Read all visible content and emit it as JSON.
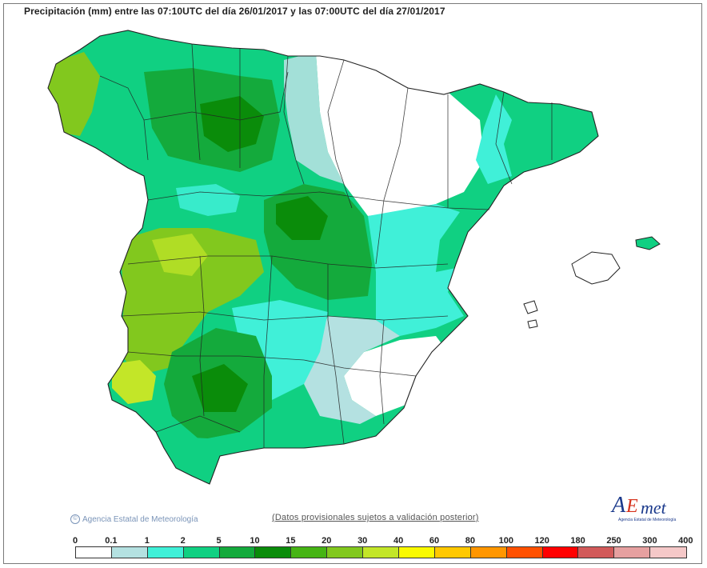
{
  "title": "Precipitación (mm) entre las 07:10UTC del día 26/01/2017 y las 07:00UTC del día 27/01/2017",
  "copyright": {
    "icon": "copyright-icon",
    "text": "Agencia Estatal de Meteorología"
  },
  "disclaimer": "(Datos provisionales sujetos a validación posterior)",
  "logo": {
    "letter_a": "A",
    "letter_e": "E",
    "letters_met": "met",
    "subtitle": "Agencia Estatal de Meteorología"
  },
  "legend": {
    "thresholds": [
      "0",
      "0.1",
      "1",
      "2",
      "5",
      "10",
      "15",
      "20",
      "30",
      "40",
      "60",
      "80",
      "100",
      "120",
      "180",
      "250",
      "300",
      "400"
    ],
    "colors": [
      "#ffffff",
      "#b4e1e1",
      "#40f0d8",
      "#10d082",
      "#14aa3c",
      "#0a8c0a",
      "#46b414",
      "#82c81e",
      "#c3e628",
      "#fafa00",
      "#ffc800",
      "#ff9600",
      "#ff5000",
      "#ff0000",
      "#d25a5a",
      "#e6a0a0",
      "#f5c8c8"
    ]
  },
  "map": {
    "palette": {
      "sea": "#ffffff",
      "dry": "#ffffff",
      "trace": "#b4e1e1",
      "light": "#40f0d8",
      "moderate": "#10d082",
      "heavy": "#14aa3c",
      "very_heavy": "#0a8c0a",
      "southwest": "#82c81e",
      "max": "#c3e628",
      "border": "#222222"
    }
  }
}
